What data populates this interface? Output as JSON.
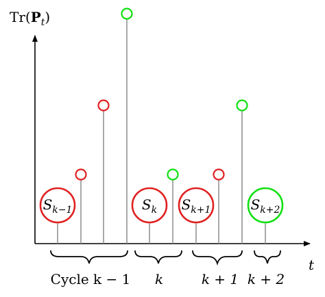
{
  "y_axis_label": {
    "base": "Tr(",
    "bold": "P",
    "sub": "t",
    "close": ")"
  },
  "x_axis_label": "t",
  "colors": {
    "unsuccessful": "#e02020",
    "successful": "#10e010",
    "stem": "#8c8c8c"
  },
  "impulses": [
    {
      "id": "s-k-1",
      "kind": "state",
      "color": "red",
      "base": "S",
      "sub": "k−1"
    },
    {
      "id": "m1",
      "kind": "measurement",
      "color": "red",
      "level": 1
    },
    {
      "id": "m2",
      "kind": "measurement",
      "color": "red",
      "level": 2
    },
    {
      "id": "m3",
      "kind": "measurement",
      "color": "green",
      "level": 3
    },
    {
      "id": "s-k",
      "kind": "state",
      "color": "red",
      "base": "S",
      "sub": "k"
    },
    {
      "id": "m4",
      "kind": "measurement",
      "color": "green",
      "level": 1
    },
    {
      "id": "s-k+1",
      "kind": "state",
      "color": "red",
      "base": "S",
      "sub": "k+1"
    },
    {
      "id": "m5",
      "kind": "measurement",
      "color": "red",
      "level": 1
    },
    {
      "id": "m6",
      "kind": "measurement",
      "color": "green",
      "level": 2
    },
    {
      "id": "s-k+2",
      "kind": "state",
      "color": "green",
      "base": "S",
      "sub": "k+2"
    }
  ],
  "cycles": [
    {
      "id": "cycle-k-1",
      "label": "Cycle k − 1"
    },
    {
      "id": "cycle-k",
      "label": "k"
    },
    {
      "id": "cycle-k+1",
      "label": "k + 1"
    },
    {
      "id": "cycle-k+2",
      "label": "k + 2"
    }
  ]
}
